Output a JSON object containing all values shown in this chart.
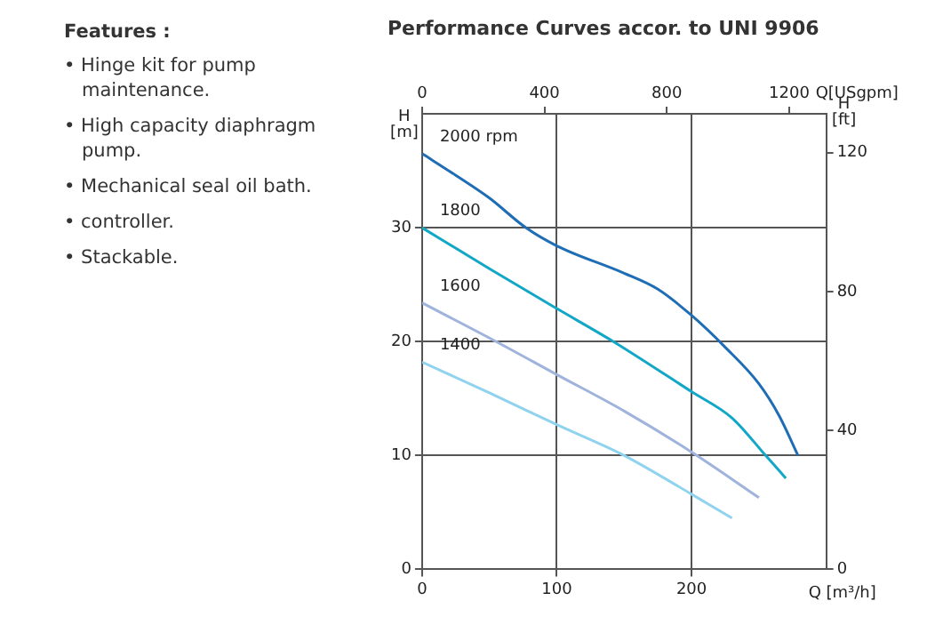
{
  "chart_data": {
    "type": "line",
    "title": "Performance Curves accor. to UNI 9906",
    "xlabel": "Q [m³/h]",
    "ylabel": "H [m]",
    "x2label": "Q[USgpm]",
    "y2label": "H [ft]",
    "xlim": [
      0,
      300
    ],
    "xticks": [
      0,
      100,
      200
    ],
    "x2lim": [
      0,
      1321
    ],
    "x2ticks": [
      0,
      400,
      800,
      1200
    ],
    "ylim": [
      0,
      40
    ],
    "yticks": [
      0,
      10,
      20,
      30
    ],
    "y2lim": [
      0,
      131.2
    ],
    "y2ticks": [
      0,
      40,
      80,
      120
    ],
    "grid": true,
    "legend": false,
    "marker": "none",
    "line_style": "solid",
    "series": [
      {
        "name": "2000 rpm",
        "color": "#1f6db5",
        "x": [
          0,
          25,
          50,
          77,
          100,
          150,
          175,
          200,
          225,
          250,
          265,
          279
        ],
        "values": [
          36.5,
          34.6,
          32.6,
          30,
          28.4,
          26,
          24.6,
          22.3,
          19.5,
          16.3,
          13.5,
          10
        ]
      },
      {
        "name": "1800",
        "color": "#13a7c7",
        "x": [
          0,
          50,
          100,
          142,
          200,
          230,
          255,
          270
        ],
        "values": [
          30,
          26.4,
          22.9,
          20,
          15.6,
          13.3,
          10,
          8
        ]
      },
      {
        "name": "1600",
        "color": "#9fb3dc",
        "x": [
          0,
          55,
          100,
          150,
          200,
          250
        ],
        "values": [
          23.4,
          20,
          17.1,
          13.9,
          10.3,
          6.3
        ]
      },
      {
        "name": "1400",
        "color": "#8fd3ef",
        "x": [
          0,
          50,
          100,
          150,
          200,
          230
        ],
        "values": [
          18.2,
          15.5,
          12.7,
          10,
          6.6,
          4.5
        ]
      }
    ],
    "annotations": [
      "Features :",
      "• Hinge kit for pump maintenance.",
      "• High capacity diaphragm pump.",
      "• Mechanical seal oil bath.",
      "• controller.",
      "• Stackable."
    ]
  }
}
